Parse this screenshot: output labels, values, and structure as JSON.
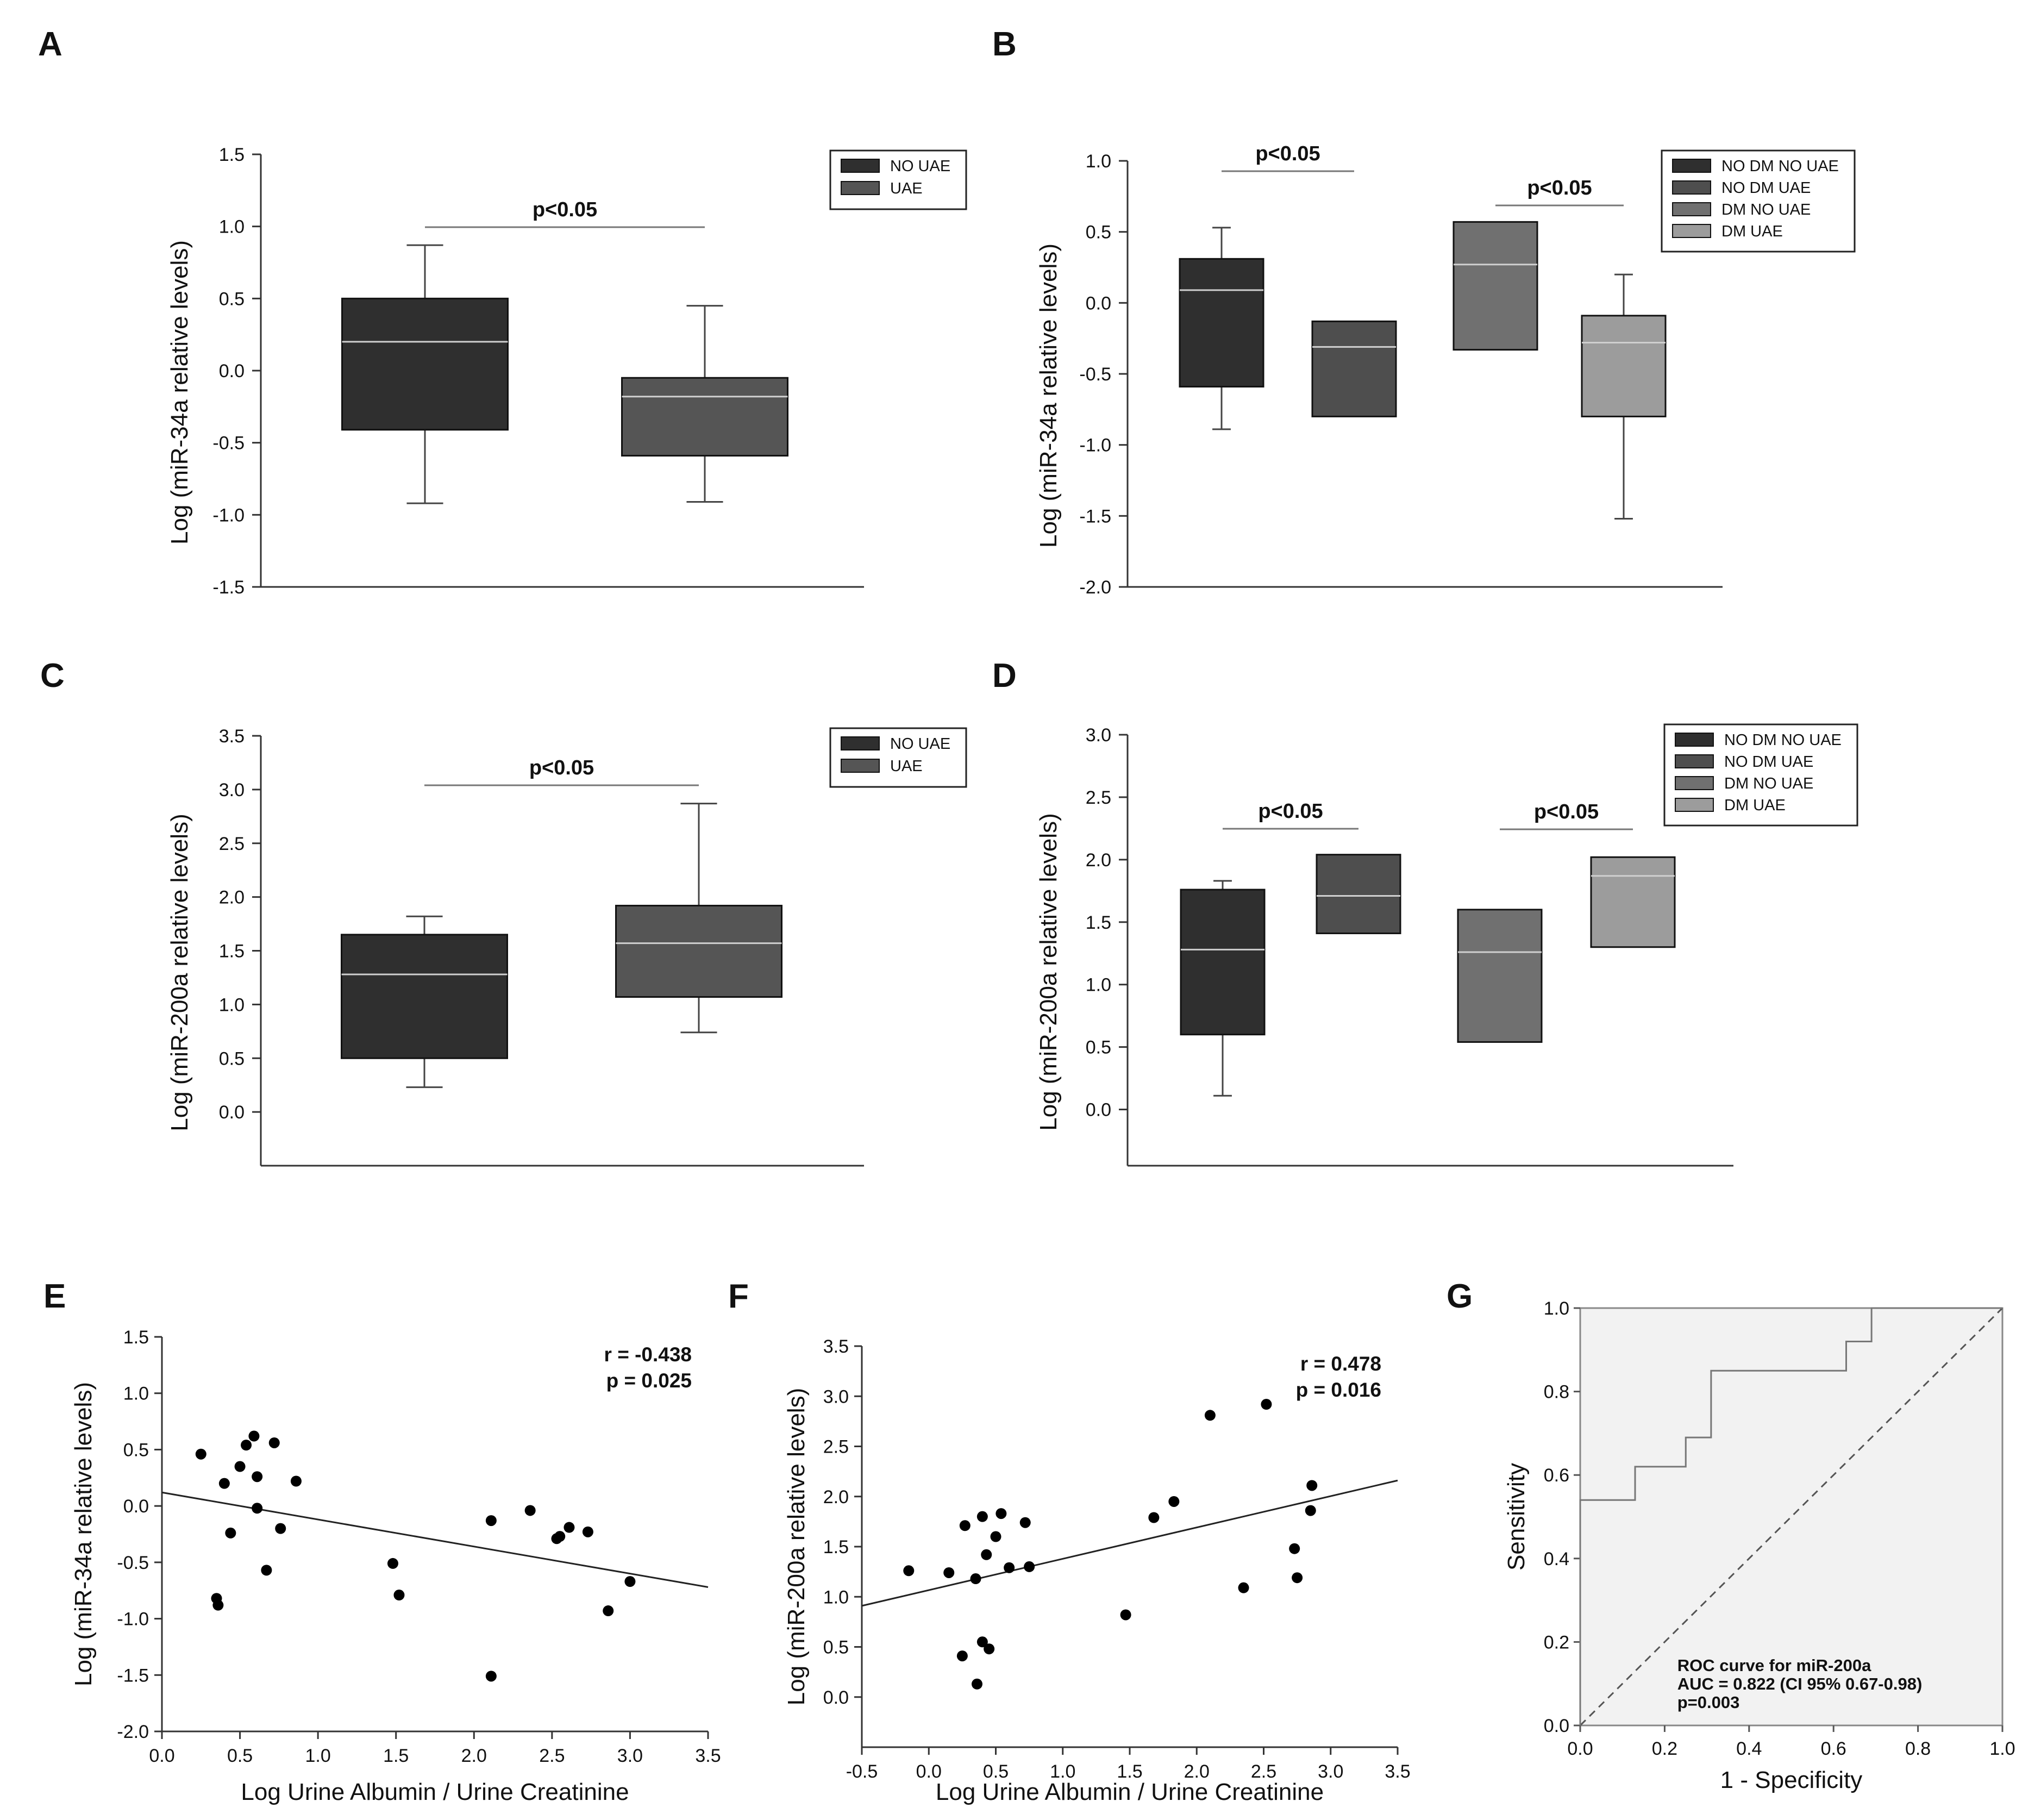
{
  "panels": {
    "A": "A",
    "B": "B",
    "C": "C",
    "D": "D",
    "E": "E",
    "F": "F",
    "G": "G"
  },
  "chart_data": [
    {
      "id": "A",
      "type": "box",
      "ylabel": "Log (miR-34a relative levels)",
      "ylim": [
        -1.5,
        1.5
      ],
      "yticks": [
        "-1.5",
        "-1.0",
        "-0.5",
        "0.0",
        "0.5",
        "1.0",
        "1.5"
      ],
      "legend": [
        "NO UAE",
        "UAE"
      ],
      "colors": [
        "#2f2f2f",
        "#555555"
      ],
      "boxes": [
        {
          "name": "NO UAE",
          "min": -0.92,
          "q1": -0.41,
          "median": 0.2,
          "q3": 0.5,
          "max": 0.87
        },
        {
          "name": "UAE",
          "min": -0.91,
          "q1": -0.59,
          "median": -0.18,
          "q3": -0.05,
          "max": 0.45
        }
      ],
      "significance": [
        {
          "from": 0,
          "to": 1,
          "label": "p<0.05"
        }
      ]
    },
    {
      "id": "B",
      "type": "box",
      "ylabel": "Log (miR-34a relative levels)",
      "ylim": [
        -2.0,
        1.0
      ],
      "yticks": [
        "-2.0",
        "-1.5",
        "-1.0",
        "-0.5",
        "0.0",
        "0.5",
        "1.0"
      ],
      "legend": [
        "NO DM NO UAE",
        "NO DM UAE",
        "DM NO UAE",
        "DM UAE"
      ],
      "colors": [
        "#2f2f2f",
        "#4e4e4e",
        "#707070",
        "#9c9c9c"
      ],
      "boxes": [
        {
          "name": "NO DM NO UAE",
          "min": -0.89,
          "q1": -0.59,
          "median": 0.09,
          "q3": 0.31,
          "max": 0.53
        },
        {
          "name": "NO DM UAE",
          "min": null,
          "q1": -0.8,
          "median": -0.31,
          "q3": -0.13,
          "max": null
        },
        {
          "name": "DM NO UAE",
          "min": null,
          "q1": -0.33,
          "median": 0.27,
          "q3": 0.57,
          "max": null
        },
        {
          "name": "DM UAE",
          "min": -1.52,
          "q1": -0.8,
          "median": -0.28,
          "q3": -0.09,
          "max": 0.2
        }
      ],
      "significance": [
        {
          "from": 0,
          "to": 1,
          "label": "p<0.05"
        },
        {
          "from": 2,
          "to": 3,
          "label": "p<0.05"
        }
      ]
    },
    {
      "id": "C",
      "type": "box",
      "ylabel": "Log (miR-200a relative levels)",
      "ylim": [
        -0.5,
        3.5
      ],
      "yticks": [
        "0.0",
        "0.5",
        "1.0",
        "1.5",
        "2.0",
        "2.5",
        "3.0",
        "3.5"
      ],
      "legend": [
        "NO UAE",
        "UAE"
      ],
      "colors": [
        "#2f2f2f",
        "#555555"
      ],
      "boxes": [
        {
          "name": "NO UAE",
          "min": 0.23,
          "q1": 0.5,
          "median": 1.28,
          "q3": 1.65,
          "max": 1.82
        },
        {
          "name": "UAE",
          "min": 0.74,
          "q1": 1.07,
          "median": 1.57,
          "q3": 1.92,
          "max": 2.87
        }
      ],
      "significance": [
        {
          "from": 0,
          "to": 1,
          "label": "p<0.05"
        }
      ]
    },
    {
      "id": "D",
      "type": "box",
      "ylabel": "Log (miR-200a relative levels)",
      "ylim": [
        -0.45,
        3.0
      ],
      "yticks": [
        "0.0",
        "0.5",
        "1.0",
        "1.5",
        "2.0",
        "2.5",
        "3.0"
      ],
      "legend": [
        "NO DM NO UAE",
        "NO DM UAE",
        "DM NO UAE",
        "DM UAE"
      ],
      "colors": [
        "#2f2f2f",
        "#4e4e4e",
        "#707070",
        "#9c9c9c"
      ],
      "boxes": [
        {
          "name": "NO DM NO UAE",
          "min": 0.11,
          "q1": 0.6,
          "median": 1.28,
          "q3": 1.76,
          "max": 1.83
        },
        {
          "name": "NO DM UAE",
          "min": null,
          "q1": 1.41,
          "median": 1.71,
          "q3": 2.04,
          "max": null
        },
        {
          "name": "DM NO UAE",
          "min": null,
          "q1": 0.54,
          "median": 1.26,
          "q3": 1.6,
          "max": null
        },
        {
          "name": "DM UAE",
          "min": null,
          "q1": 1.3,
          "median": 1.87,
          "q3": 2.02,
          "max": null
        }
      ],
      "significance": [
        {
          "from": 0,
          "to": 1,
          "label": "p<0.05"
        },
        {
          "from": 2,
          "to": 3,
          "label": "p<0.05"
        }
      ]
    },
    {
      "id": "E",
      "type": "scatter",
      "xlabel": "Log Urine Albumin / Urine Creatinine",
      "ylabel": "Log (miR-34a relative levels)",
      "xlim": [
        0,
        3.5
      ],
      "ylim": [
        -2.0,
        1.5
      ],
      "xticks": [
        "0.0",
        "0.5",
        "1.0",
        "1.5",
        "2.0",
        "2.5",
        "3.0",
        "3.5"
      ],
      "yticks": [
        "-2.0",
        "-1.5",
        "-1.0",
        "-0.5",
        "0.0",
        "0.5",
        "1.0",
        "1.5"
      ],
      "r": "r = -0.438",
      "p": "p = 0.025",
      "fit": [
        [
          0,
          0.12
        ],
        [
          3.5,
          -0.72
        ]
      ],
      "points": [
        [
          0.25,
          0.46
        ],
        [
          0.35,
          -0.82
        ],
        [
          0.36,
          -0.88
        ],
        [
          0.4,
          0.2
        ],
        [
          0.44,
          -0.24
        ],
        [
          0.5,
          0.35
        ],
        [
          0.54,
          0.54
        ],
        [
          0.59,
          0.62
        ],
        [
          0.61,
          0.26
        ],
        [
          0.61,
          -0.02
        ],
        [
          0.67,
          -0.57
        ],
        [
          0.72,
          0.56
        ],
        [
          0.76,
          -0.2
        ],
        [
          0.86,
          0.22
        ],
        [
          1.48,
          -0.51
        ],
        [
          1.52,
          -0.79
        ],
        [
          2.11,
          -0.13
        ],
        [
          2.11,
          -1.51
        ],
        [
          2.36,
          -0.04
        ],
        [
          2.53,
          -0.29
        ],
        [
          2.55,
          -0.27
        ],
        [
          2.61,
          -0.19
        ],
        [
          2.73,
          -0.23
        ],
        [
          2.86,
          -0.93
        ],
        [
          3.0,
          -0.67
        ]
      ]
    },
    {
      "id": "F",
      "type": "scatter",
      "xlabel": "Log Urine Albumin / Urine Creatinine",
      "ylabel": "Log (miR-200a relative levels)",
      "xlim": [
        -0.5,
        3.5
      ],
      "ylim": [
        -0.5,
        3.5
      ],
      "xticks": [
        "-0.5",
        "0.0",
        "0.5",
        "1.0",
        "1.5",
        "2.0",
        "2.5",
        "3.0",
        "3.5"
      ],
      "yticks": [
        "0.0",
        "0.5",
        "1.0",
        "1.5",
        "2.0",
        "2.5",
        "3.0",
        "3.5"
      ],
      "r": "r = 0.478",
      "p": "p = 0.016",
      "fit": [
        [
          -0.5,
          0.91
        ],
        [
          3.5,
          2.16
        ]
      ],
      "points": [
        [
          -0.15,
          1.26
        ],
        [
          0.15,
          1.24
        ],
        [
          0.25,
          0.41
        ],
        [
          0.27,
          1.71
        ],
        [
          0.35,
          1.18
        ],
        [
          0.36,
          0.13
        ],
        [
          0.4,
          1.8
        ],
        [
          0.4,
          0.55
        ],
        [
          0.43,
          1.42
        ],
        [
          0.45,
          0.48
        ],
        [
          0.5,
          1.6
        ],
        [
          0.54,
          1.83
        ],
        [
          0.6,
          1.29
        ],
        [
          0.72,
          1.74
        ],
        [
          0.75,
          1.3
        ],
        [
          1.47,
          0.82
        ],
        [
          1.68,
          1.79
        ],
        [
          1.83,
          1.95
        ],
        [
          2.1,
          2.81
        ],
        [
          2.35,
          1.09
        ],
        [
          2.52,
          2.92
        ],
        [
          2.73,
          1.48
        ],
        [
          2.75,
          1.19
        ],
        [
          2.85,
          1.86
        ],
        [
          2.86,
          2.11
        ]
      ]
    },
    {
      "id": "G",
      "type": "line",
      "title": "ROC curve for miR-200a",
      "xlabel": "1 - Specificity",
      "ylabel": "Sensitivity",
      "xlim": [
        0,
        1
      ],
      "ylim": [
        0,
        1
      ],
      "xticks": [
        "0.0",
        "0.2",
        "0.4",
        "0.6",
        "0.8",
        "1.0"
      ],
      "yticks": [
        "0.0",
        "0.2",
        "0.4",
        "0.6",
        "0.8",
        "1.0"
      ],
      "roc": [
        [
          0,
          0
        ],
        [
          0,
          0.54
        ],
        [
          0.13,
          0.54
        ],
        [
          0.13,
          0.62
        ],
        [
          0.25,
          0.62
        ],
        [
          0.25,
          0.69
        ],
        [
          0.31,
          0.69
        ],
        [
          0.31,
          0.85
        ],
        [
          0.63,
          0.85
        ],
        [
          0.63,
          0.92
        ],
        [
          0.69,
          0.92
        ],
        [
          0.69,
          1.0
        ],
        [
          1.0,
          1.0
        ]
      ],
      "annotations": [
        "ROC curve for miR-200a",
        "AUC = 0.822 (CI 95%  0.67-0.98)",
        "p=0.003"
      ]
    }
  ]
}
